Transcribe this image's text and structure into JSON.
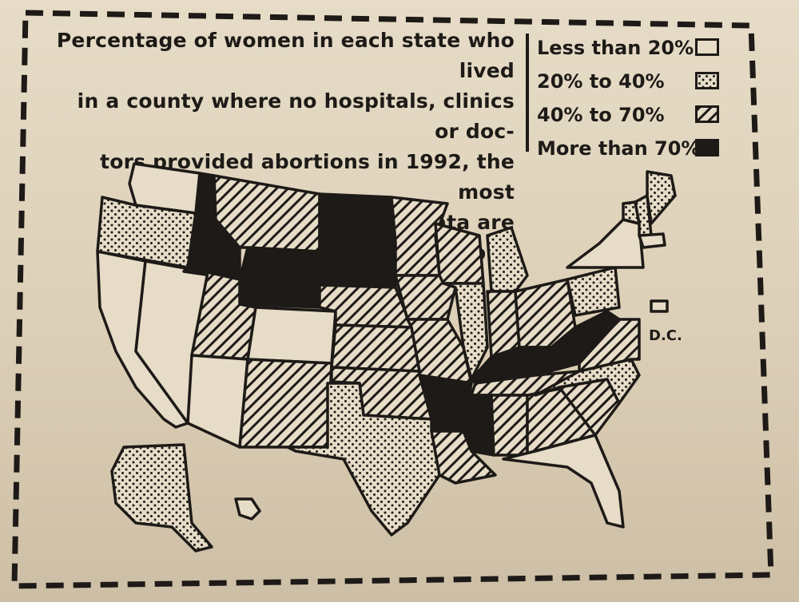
{
  "caption": {
    "line1": "Percentage of women in each state who lived",
    "line2": "in a county where no hospitals, clinics or doc-",
    "line3": "tors provided abortions in 1992, the most",
    "line4": "recent year for which data are available."
  },
  "legend": [
    {
      "label": "Less than 20%",
      "pattern": "blank"
    },
    {
      "label": "20% to 40%",
      "pattern": "dots"
    },
    {
      "label": "40% to 70%",
      "pattern": "hatch"
    },
    {
      "label": "More than 70%",
      "pattern": "solid"
    }
  ],
  "dc_label": "D.C.",
  "colors": {
    "ink": "#1d1a17",
    "paper": "#e6dcc7"
  },
  "states": {
    "WA": "blank",
    "OR": "dots",
    "CA": "blank",
    "NV": "blank",
    "ID": "solid",
    "MT": "hatch",
    "WY": "solid",
    "UT": "hatch",
    "AZ": "blank",
    "CO": "blank",
    "NM": "hatch",
    "ND": "solid",
    "SD": "solid",
    "NE": "hatch",
    "KS": "hatch",
    "OK": "hatch",
    "TX": "dots",
    "MN": "hatch",
    "IA": "hatch",
    "MO": "hatch",
    "AR": "solid",
    "LA": "hatch",
    "WI": "hatch",
    "IL": "dots",
    "MI": "dots",
    "IN": "hatch",
    "OH": "hatch",
    "KY": "solid",
    "TN": "hatch",
    "MS": "solid",
    "AL": "hatch",
    "GA": "hatch",
    "FL": "blank",
    "SC": "hatch",
    "NC": "dots",
    "VA": "hatch",
    "WV": "solid",
    "PA": "dots",
    "NY": "blank",
    "VT": "dots",
    "NH": "dots",
    "ME": "dots",
    "MA": "blank",
    "AK": "dots",
    "HI": "blank",
    "DC": "blank"
  }
}
